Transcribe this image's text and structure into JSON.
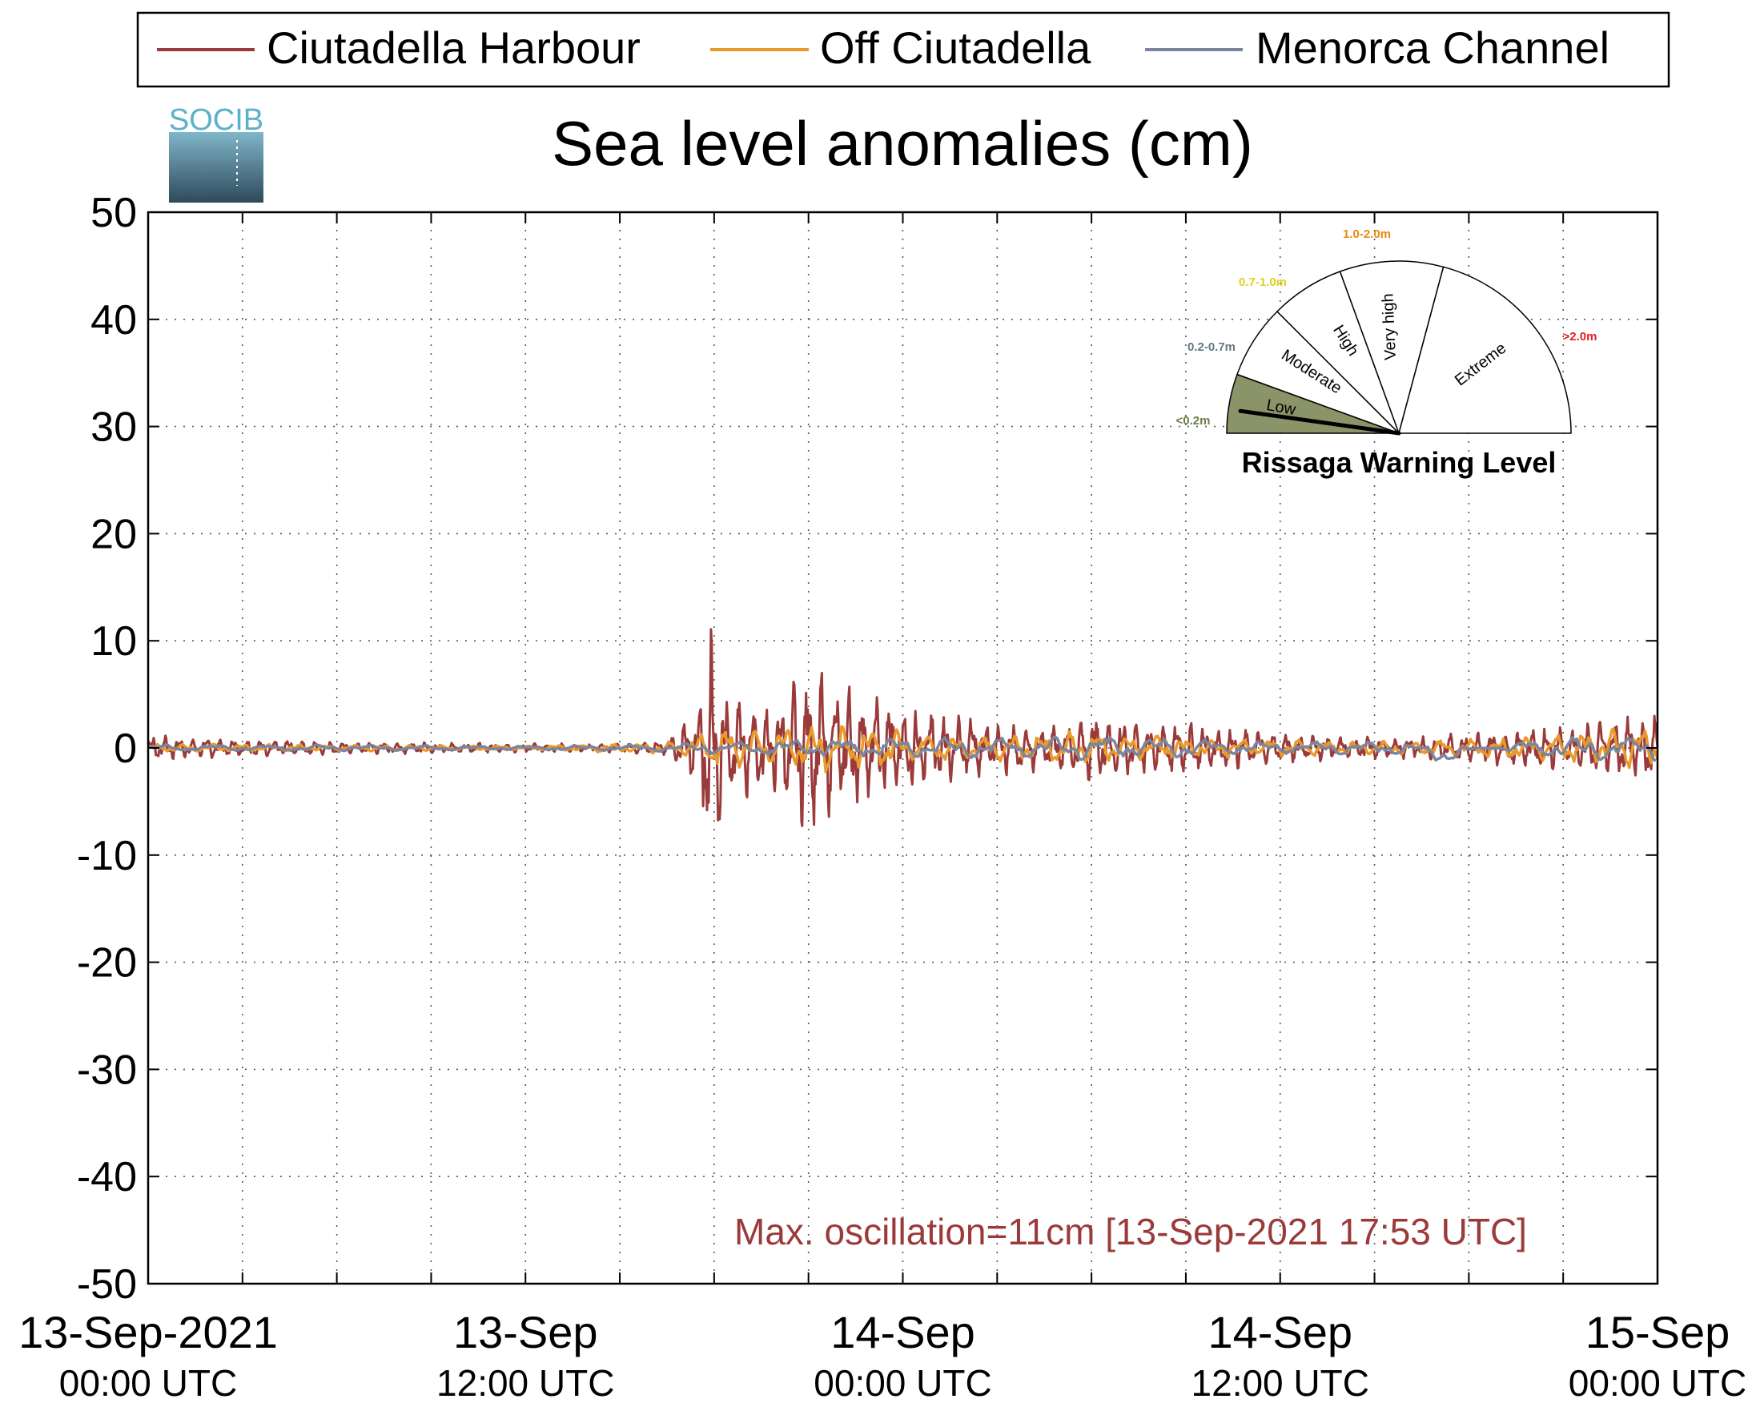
{
  "logo_text": "SOCIB",
  "chart_data": {
    "type": "line",
    "title": "Sea level anomalies (cm)",
    "ylabel": "",
    "xlabel": "",
    "ylim": [
      -50,
      50
    ],
    "yticks": [
      50,
      40,
      30,
      20,
      10,
      0,
      -10,
      -20,
      -30,
      -40,
      -50
    ],
    "xlim_hours": [
      0,
      48
    ],
    "xtick_labels": [
      {
        "hour": 0,
        "line1": "13-Sep-2021",
        "line2": "00:00 UTC"
      },
      {
        "hour": 12,
        "line1": "13-Sep",
        "line2": "12:00 UTC"
      },
      {
        "hour": 24,
        "line1": "14-Sep",
        "line2": "00:00 UTC"
      },
      {
        "hour": 36,
        "line1": "14-Sep",
        "line2": "12:00 UTC"
      },
      {
        "hour": 48,
        "line1": "15-Sep",
        "line2": "00:00 UTC"
      }
    ],
    "grid": true,
    "legend_position": "top",
    "series": [
      {
        "name": "Ciutadella Harbour",
        "color": "#9b3a3a",
        "envelope": [
          [
            0,
            1.2
          ],
          [
            3,
            0.8
          ],
          [
            6,
            0.6
          ],
          [
            9,
            0.5
          ],
          [
            12,
            0.4
          ],
          [
            15,
            0.4
          ],
          [
            16.5,
            0.7
          ],
          [
            17.5,
            4
          ],
          [
            17.9,
            11
          ],
          [
            18.5,
            5
          ],
          [
            20,
            4
          ],
          [
            21,
            8
          ],
          [
            22,
            6
          ],
          [
            23,
            5
          ],
          [
            24,
            4
          ],
          [
            25,
            3.5
          ],
          [
            27,
            2.5
          ],
          [
            29,
            2
          ],
          [
            30,
            3
          ],
          [
            32,
            2.5
          ],
          [
            34,
            2
          ],
          [
            36,
            1.5
          ],
          [
            38,
            1
          ],
          [
            40,
            1
          ],
          [
            41,
            1.2
          ],
          [
            44,
            1.8
          ],
          [
            46,
            2.5
          ],
          [
            48,
            3.5
          ]
        ]
      },
      {
        "name": "Off Ciutadella",
        "color": "#e89a2c",
        "envelope": [
          [
            0,
            0.4
          ],
          [
            6,
            0.3
          ],
          [
            12,
            0.2
          ],
          [
            17,
            0.6
          ],
          [
            18,
            2
          ],
          [
            20,
            1.8
          ],
          [
            22,
            2.2
          ],
          [
            24,
            1.6
          ],
          [
            27,
            1.2
          ],
          [
            30,
            1.6
          ],
          [
            33,
            1
          ],
          [
            36,
            0.8
          ],
          [
            40,
            0.6
          ],
          [
            44,
            1.2
          ],
          [
            48,
            2
          ]
        ]
      },
      {
        "name": "Menorca Channel",
        "color": "#7a86a0",
        "envelope": [
          [
            0,
            0.3
          ],
          [
            6,
            0.3
          ],
          [
            12,
            0.2
          ],
          [
            17,
            0.4
          ],
          [
            20,
            0.8
          ],
          [
            24,
            0.9
          ],
          [
            30,
            1.2
          ],
          [
            36,
            0.6
          ],
          [
            40,
            0.7
          ],
          [
            41,
            -1.0
          ],
          [
            44,
            0.9
          ],
          [
            48,
            1.3
          ]
        ]
      }
    ],
    "annotation": "Max. oscillation=11cm [13-Sep-2021 17:53 UTC]",
    "annotation_color": "#9b3a3a"
  },
  "gauge": {
    "title": "Rissaga Warning Level",
    "current_level": "Low",
    "segments": [
      {
        "label": "Low",
        "range": "<0.2m",
        "range_color": "#6b7d4a",
        "fill": "#8b9468"
      },
      {
        "label": "Moderate",
        "range": "0.2-0.7m",
        "range_color": "#5f7a80",
        "fill": "#ffffff"
      },
      {
        "label": "High",
        "range": "0.7-1.0m",
        "range_color": "#e0d020",
        "fill": "#ffffff"
      },
      {
        "label": "Very high",
        "range": "1.0-2.0m",
        "range_color": "#e88a10",
        "fill": "#ffffff"
      },
      {
        "label": "Extreme",
        "range": ">2.0m",
        "range_color": "#e02020",
        "fill": "#ffffff"
      }
    ]
  }
}
